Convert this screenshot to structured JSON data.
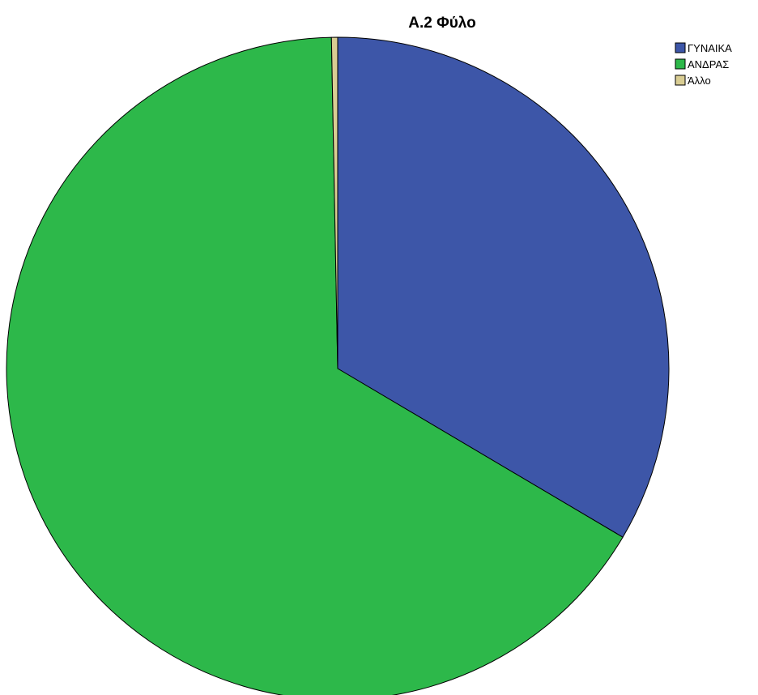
{
  "chart_data": {
    "type": "pie",
    "title": "A.2 Φύλο",
    "slices": [
      {
        "label": "ΓΥΝΑΙΚΑ",
        "value": 33.5,
        "color": "#3d56a8"
      },
      {
        "label": "ΑΝΔΡΑΣ",
        "value": 66.2,
        "color": "#2db84a"
      },
      {
        "label": "Άλλο",
        "value": 0.3,
        "color": "#d9cd93"
      }
    ],
    "start_angle": "12 o'clock",
    "direction": "clockwise",
    "legend": {
      "position": "top-right",
      "entries": [
        "ΓΥΝΑΙΚΑ",
        "ΑΝΔΡΑΣ",
        "Άλλο"
      ]
    }
  }
}
